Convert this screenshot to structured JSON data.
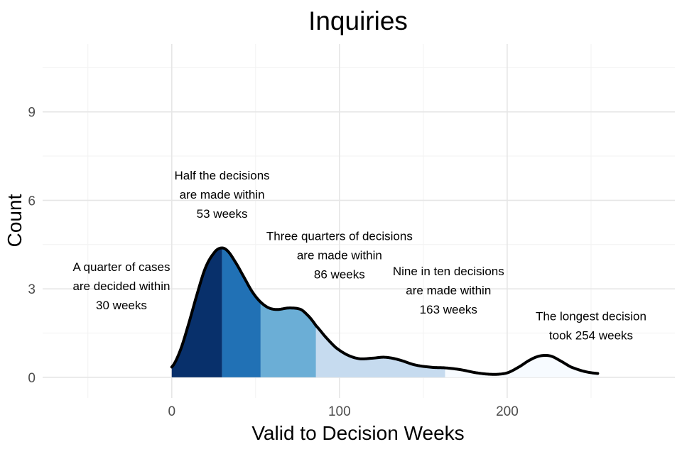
{
  "chart_data": {
    "type": "area",
    "title": "Inquiries",
    "xlabel": "Valid to Decision Weeks",
    "ylabel": "Count",
    "xlim": [
      -77,
      300
    ],
    "ylim": [
      -0.7,
      11.3
    ],
    "x_ticks": [
      0,
      100,
      200
    ],
    "y_ticks": [
      0,
      3,
      6,
      9
    ],
    "grid": true,
    "legend": "none",
    "density_curve": [
      {
        "x": 0,
        "y": 0.35
      },
      {
        "x": 5,
        "y": 0.9
      },
      {
        "x": 10,
        "y": 1.8
      },
      {
        "x": 15,
        "y": 2.8
      },
      {
        "x": 20,
        "y": 3.7
      },
      {
        "x": 25,
        "y": 4.2
      },
      {
        "x": 29,
        "y": 4.38
      },
      {
        "x": 33,
        "y": 4.3
      },
      {
        "x": 38,
        "y": 3.9
      },
      {
        "x": 43,
        "y": 3.4
      },
      {
        "x": 48,
        "y": 2.9
      },
      {
        "x": 53,
        "y": 2.55
      },
      {
        "x": 58,
        "y": 2.35
      },
      {
        "x": 63,
        "y": 2.3
      },
      {
        "x": 70,
        "y": 2.35
      },
      {
        "x": 77,
        "y": 2.3
      },
      {
        "x": 82,
        "y": 2.05
      },
      {
        "x": 86,
        "y": 1.75
      },
      {
        "x": 92,
        "y": 1.35
      },
      {
        "x": 98,
        "y": 1.0
      },
      {
        "x": 105,
        "y": 0.75
      },
      {
        "x": 112,
        "y": 0.63
      },
      {
        "x": 120,
        "y": 0.65
      },
      {
        "x": 127,
        "y": 0.68
      },
      {
        "x": 135,
        "y": 0.6
      },
      {
        "x": 145,
        "y": 0.42
      },
      {
        "x": 155,
        "y": 0.34
      },
      {
        "x": 163,
        "y": 0.32
      },
      {
        "x": 172,
        "y": 0.26
      },
      {
        "x": 182,
        "y": 0.15
      },
      {
        "x": 192,
        "y": 0.1
      },
      {
        "x": 200,
        "y": 0.15
      },
      {
        "x": 207,
        "y": 0.35
      },
      {
        "x": 214,
        "y": 0.6
      },
      {
        "x": 220,
        "y": 0.73
      },
      {
        "x": 226,
        "y": 0.72
      },
      {
        "x": 232,
        "y": 0.55
      },
      {
        "x": 238,
        "y": 0.35
      },
      {
        "x": 246,
        "y": 0.2
      },
      {
        "x": 254,
        "y": 0.13
      }
    ],
    "shaded_regions": [
      {
        "from": 0,
        "to": 30,
        "color": "#08306b"
      },
      {
        "from": 30,
        "to": 53,
        "color": "#2171b5"
      },
      {
        "from": 53,
        "to": 86,
        "color": "#6baed6"
      },
      {
        "from": 86,
        "to": 163,
        "color": "#c6dbef"
      },
      {
        "from": 163,
        "to": 254,
        "color": "#f7fbff"
      }
    ],
    "line_color": "#000000",
    "annotations": [
      {
        "lines": [
          "A quarter of cases",
          "are decided within",
          "30 weeks"
        ],
        "x": -30,
        "y": 3.1
      },
      {
        "lines": [
          "Half the decisions",
          "are made within",
          "53 weeks"
        ],
        "x": 30,
        "y": 6.2
      },
      {
        "lines": [
          "Three quarters of decisions",
          "are made within",
          "86 weeks"
        ],
        "x": 100,
        "y": 4.15
      },
      {
        "lines": [
          "Nine in ten decisions",
          "are made within",
          "163 weeks"
        ],
        "x": 165,
        "y": 2.95
      },
      {
        "lines": [
          "The longest decision",
          "took 254 weeks"
        ],
        "x": 250,
        "y": 1.75
      }
    ]
  }
}
